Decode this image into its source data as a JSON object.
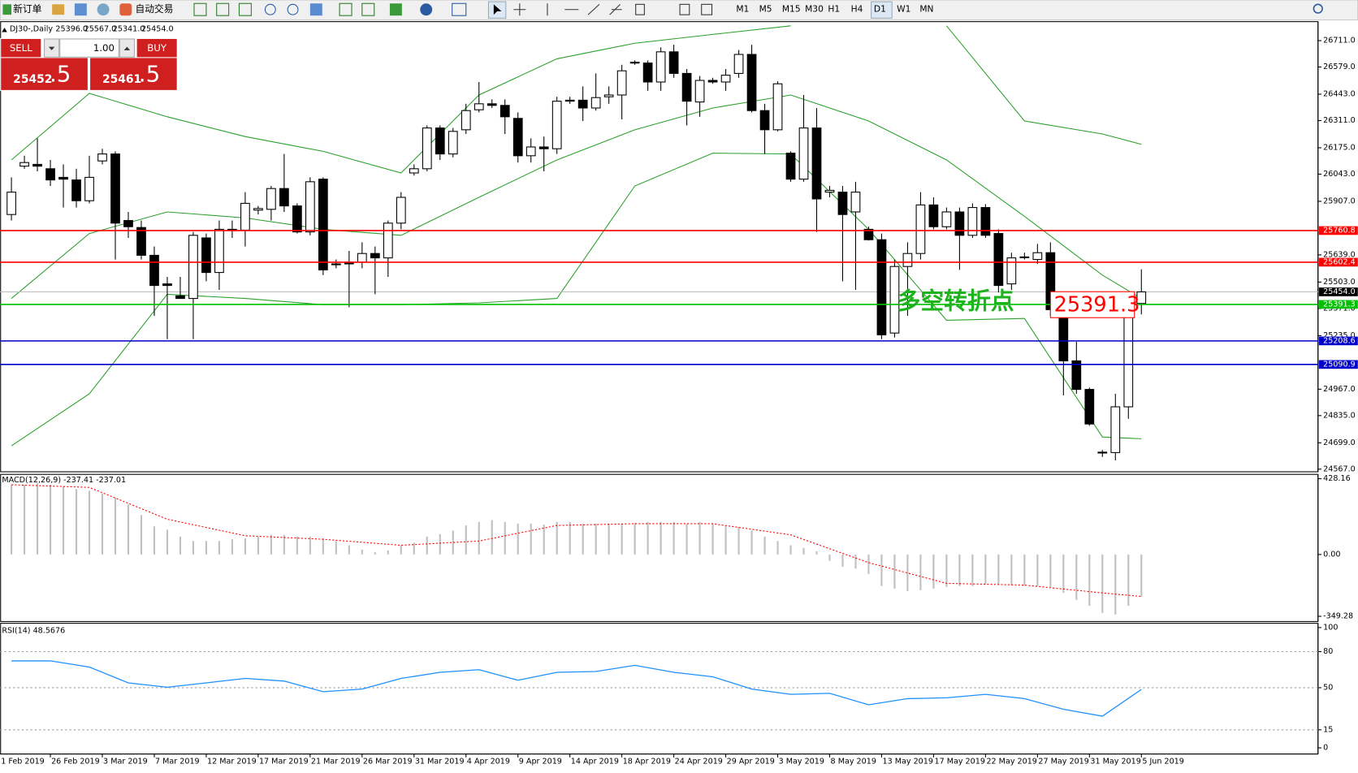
{
  "toolbar": {
    "new_order": "新订单",
    "auto_trading": "自动交易",
    "timeframes": [
      "M1",
      "M5",
      "M15",
      "M30",
      "H1",
      "H4",
      "D1",
      "W1",
      "MN"
    ],
    "active_timeframe": "D1"
  },
  "trade_panel": {
    "sell": "SELL",
    "buy": "BUY",
    "volume": "1.00",
    "bid_main": "25452",
    "bid_tail": ".5",
    "ask_main": "25461",
    "ask_tail": ".5"
  },
  "chart_data": [
    {
      "type": "candlestick",
      "title": "DJ30-,Daily",
      "ohlc_labels": [
        "25396.0",
        "25567.0",
        "25341.0",
        "25454.0"
      ],
      "open": [
        25841,
        26083,
        26092,
        26070,
        26027,
        26014,
        25910,
        26109,
        26144,
        25811,
        25776,
        25637,
        25494,
        25434,
        25421,
        25724,
        25551,
        25767,
        25763,
        25863,
        25867,
        25971,
        25884,
        25754,
        26018,
        25594,
        25603,
        25603,
        25646,
        25624,
        25798,
        26049,
        26070,
        26274,
        26144,
        26265,
        26365,
        26395,
        26387,
        26322,
        26135,
        26179,
        26170,
        26408,
        26413,
        26374,
        26430,
        26439,
        26603,
        26599,
        26504,
        26655,
        26547,
        26404,
        26512,
        26504,
        26547,
        26642,
        26361,
        26265,
        26148,
        26018,
        26274,
        25953,
        25953,
        25854,
        25767,
        25715,
        25248,
        25581,
        25646,
        25889,
        25780,
        25854,
        25737,
        25876,
        25746,
        25494,
        25629,
        25616,
        25650,
        25365,
        25109,
        24966,
        24650,
        24650,
        24879,
        25396
      ],
      "high": [
        26027,
        26135,
        26222,
        26114,
        26092,
        26070,
        26135,
        26170,
        26157,
        25854,
        25811,
        25681,
        25529,
        25529,
        25754,
        25746,
        25811,
        25811,
        25953,
        25884,
        25984,
        26144,
        25897,
        26027,
        26027,
        25616,
        25659,
        25702,
        25681,
        25811,
        25953,
        26092,
        26287,
        26287,
        26274,
        26395,
        26504,
        26417,
        26417,
        26352,
        26222,
        26231,
        26430,
        26430,
        26482,
        26547,
        26482,
        26590,
        26612,
        26612,
        26677,
        26690,
        26569,
        26534,
        26525,
        26569,
        26664,
        26690,
        26395,
        26508,
        26157,
        26439,
        26374,
        25984,
        25984,
        26005,
        25780,
        25746,
        25616,
        25702,
        25953,
        25927,
        25876,
        25876,
        25897,
        25893,
        25767,
        25650,
        25650,
        25694,
        25702,
        25377,
        25204,
        24975,
        24663,
        24944,
        25421,
        25567
      ],
      "low": [
        25811,
        26070,
        26057,
        25984,
        25876,
        25876,
        25897,
        26092,
        25616,
        25724,
        25616,
        25334,
        25217,
        25421,
        25217,
        25507,
        25464,
        25724,
        25681,
        25841,
        25811,
        25854,
        25746,
        25737,
        25538,
        25572,
        25377,
        25572,
        25442,
        25529,
        25767,
        26036,
        26057,
        26114,
        26127,
        26244,
        26352,
        26374,
        26244,
        26101,
        26101,
        26057,
        26144,
        26395,
        26309,
        26361,
        26395,
        26317,
        26590,
        26460,
        26460,
        26525,
        26287,
        26330,
        26495,
        26460,
        26525,
        26352,
        26144,
        26257,
        26005,
        26005,
        25754,
        25927,
        25507,
        25464,
        25711,
        25217,
        25226,
        25334,
        25616,
        25767,
        25767,
        25564,
        25724,
        25724,
        25451,
        25464,
        25616,
        25594,
        25334,
        24936,
        24944,
        24784,
        24628,
        24611,
        24819,
        25341
      ],
      "close": [
        25953,
        26101,
        26083,
        26014,
        26018,
        25910,
        26027,
        26144,
        25798,
        25780,
        25637,
        25486,
        25486,
        25421,
        25737,
        25551,
        25767,
        25763,
        25897,
        25871,
        25971,
        25884,
        25754,
        26005,
        25564,
        25592,
        25594,
        25646,
        25624,
        25798,
        25927,
        26070,
        26274,
        26144,
        26257,
        26361,
        26395,
        26387,
        26330,
        26135,
        26179,
        26170,
        26408,
        26413,
        26374,
        26426,
        26439,
        26560,
        26599,
        26504,
        26655,
        26547,
        26408,
        26512,
        26504,
        26538,
        26642,
        26361,
        26265,
        26495,
        26018,
        26274,
        25919,
        25962,
        25841,
        25953,
        25715,
        25239,
        25581,
        25646,
        25889,
        25780,
        25854,
        25737,
        25876,
        25737,
        25486,
        25624,
        25627,
        25650,
        25365,
        25109,
        24966,
        24793,
        24652,
        24879,
        25399,
        25454
      ],
      "categories": [
        null,
        null,
        null,
        "26 Feb 2019",
        null,
        null,
        null,
        "3 Mar 2019",
        null,
        null,
        null,
        "7 Mar 2019",
        null,
        null,
        null,
        "12 Mar 2019",
        null,
        null,
        null,
        "17 Mar 2019",
        null,
        null,
        null,
        "21 Mar 2019",
        null,
        null,
        null,
        "26 Mar 2019",
        null,
        null,
        null,
        "31 Mar 2019",
        null,
        null,
        null,
        "4 Apr 2019",
        null,
        null,
        null,
        "9 Apr 2019",
        null,
        null,
        null,
        "14 Apr 2019",
        null,
        null,
        null,
        "18 Apr 2019",
        null,
        null,
        null,
        "24 Apr 2019",
        null,
        null,
        null,
        "29 Apr 2019",
        null,
        null,
        null,
        "3 May 2019",
        null,
        null,
        null,
        "8 May 2019",
        null,
        null,
        null,
        "13 May 2019",
        null,
        null,
        null,
        "17 May 2019",
        null,
        null,
        null,
        "22 May 2019",
        null,
        null,
        null,
        "27 May 2019",
        null,
        null,
        null,
        "31 May 2019",
        null,
        null,
        null,
        "5 Jun 2019"
      ],
      "first_date_label": "1 Feb 2019",
      "bands": {
        "color": "#2ca02c",
        "x": [
          0,
          6,
          12,
          18,
          24,
          30,
          36,
          42,
          48,
          54,
          60,
          66,
          72,
          78,
          84,
          87
        ],
        "upper": [
          26114,
          26447,
          26330,
          26231,
          26157,
          26049,
          26439,
          26620,
          26698,
          26742,
          26785,
          null,
          26785,
          26309,
          26244,
          26192
        ],
        "middle": [
          25421,
          25746,
          25854,
          25824,
          25767,
          25737,
          25927,
          26114,
          26265,
          26374,
          26439,
          26309,
          26114,
          25832,
          25538,
          25421
        ],
        "lower": [
          24684,
          24944,
          25442,
          25421,
          25390,
          25390,
          25399,
          25421,
          25984,
          26148,
          26144,
          25767,
          25312,
          25321,
          24728,
          24719
        ]
      },
      "levels": [
        {
          "value": 25760.8,
          "color": "#ff0000"
        },
        {
          "value": 25602.4,
          "color": "#ff0000"
        },
        {
          "value": 25391.3,
          "color": "#00c000"
        },
        {
          "value": 25208.6,
          "color": "#0000cc"
        },
        {
          "value": 25090.9,
          "color": "#0000cc"
        }
      ],
      "last_price": {
        "value": 25454,
        "label": "25454.0"
      },
      "callout": {
        "text": "多空转折点",
        "price": "25391.3"
      },
      "ylim": [
        24554,
        26806
      ],
      "yticks": [
        {
          "value": 26711,
          "label": "26711.0"
        },
        {
          "value": 26579,
          "label": "26579.0"
        },
        {
          "value": 26443,
          "label": "26443.0"
        },
        {
          "value": 26311,
          "label": "26311.0"
        },
        {
          "value": 26175,
          "label": "26175.0"
        },
        {
          "value": 26043,
          "label": "26043.0"
        },
        {
          "value": 25907,
          "label": "25907.0"
        },
        {
          "value": 25639,
          "label": "25639.0"
        },
        {
          "value": 25503,
          "label": "25503.0"
        },
        {
          "value": 25371,
          "label": "25371.0"
        },
        {
          "value": 25235,
          "label": "25235.0"
        },
        {
          "value": 24967,
          "label": "24967.0"
        },
        {
          "value": 24835,
          "label": "24835.0"
        },
        {
          "value": 24699,
          "label": "24699.0"
        },
        {
          "value": 24567,
          "label": "24567.0"
        }
      ]
    },
    {
      "type": "macd",
      "title": "MACD(12,26,9) -237.41 -237.01",
      "values": [
        394,
        394,
        404,
        394,
        384,
        370,
        360,
        345,
        321,
        282,
        223,
        159,
        140,
        101,
        76,
        76,
        76,
        86,
        91,
        101,
        111,
        111,
        101,
        101,
        91,
        76,
        52,
        27,
        13,
        23,
        52,
        67,
        101,
        115,
        135,
        164,
        184,
        194,
        184,
        174,
        174,
        169,
        184,
        184,
        174,
        174,
        174,
        174,
        179,
        184,
        184,
        184,
        174,
        184,
        174,
        159,
        155,
        135,
        101,
        76,
        52,
        37,
        18,
        -36,
        -70,
        -80,
        -110,
        -178,
        -193,
        -207,
        -202,
        -193,
        -183,
        -178,
        -178,
        -168,
        -173,
        -173,
        -178,
        -178,
        -183,
        -217,
        -256,
        -290,
        -330,
        -339,
        -290,
        -237.41
      ],
      "color": "#c0c0c0",
      "signal": {
        "color": "#ff0000",
        "x": [
          0,
          6,
          12,
          18,
          24,
          30,
          36,
          42,
          48,
          54,
          60,
          66,
          72,
          78,
          84,
          87
        ],
        "values": [
          394,
          379,
          199,
          106,
          86,
          52,
          76,
          164,
          174,
          174,
          111,
          -46,
          -163,
          -173,
          -217,
          -237.01
        ]
      },
      "ylim": [
        -378.6,
        452.6
      ],
      "yticks": [
        428.16,
        {
          "value": 0,
          "label": "0.00"
        },
        -349.28
      ]
    },
    {
      "type": "line",
      "title": "RSI(14) 48.5676",
      "color": "#1e90ff",
      "x": [
        0,
        3,
        6,
        9,
        12,
        15,
        18,
        21,
        24,
        27,
        30,
        33,
        36,
        39,
        42,
        45,
        48,
        51,
        54,
        57,
        60,
        63,
        66,
        69,
        72,
        75,
        78,
        81,
        84,
        87
      ],
      "values": [
        72.3,
        72.3,
        67.2,
        54.0,
        50.4,
        54.0,
        57.7,
        55.5,
        46.7,
        48.9,
        57.7,
        62.8,
        65.0,
        56.2,
        62.8,
        63.5,
        68.6,
        62.8,
        59.1,
        48.9,
        44.5,
        45.3,
        35.8,
        40.9,
        41.6,
        44.5,
        40.9,
        32.1,
        26.3,
        48.5676
      ],
      "levels": [
        80,
        50,
        15
      ],
      "ylim": [
        -5.1,
        103.6
      ],
      "yticks": [
        100,
        80,
        50,
        15,
        0
      ]
    }
  ]
}
